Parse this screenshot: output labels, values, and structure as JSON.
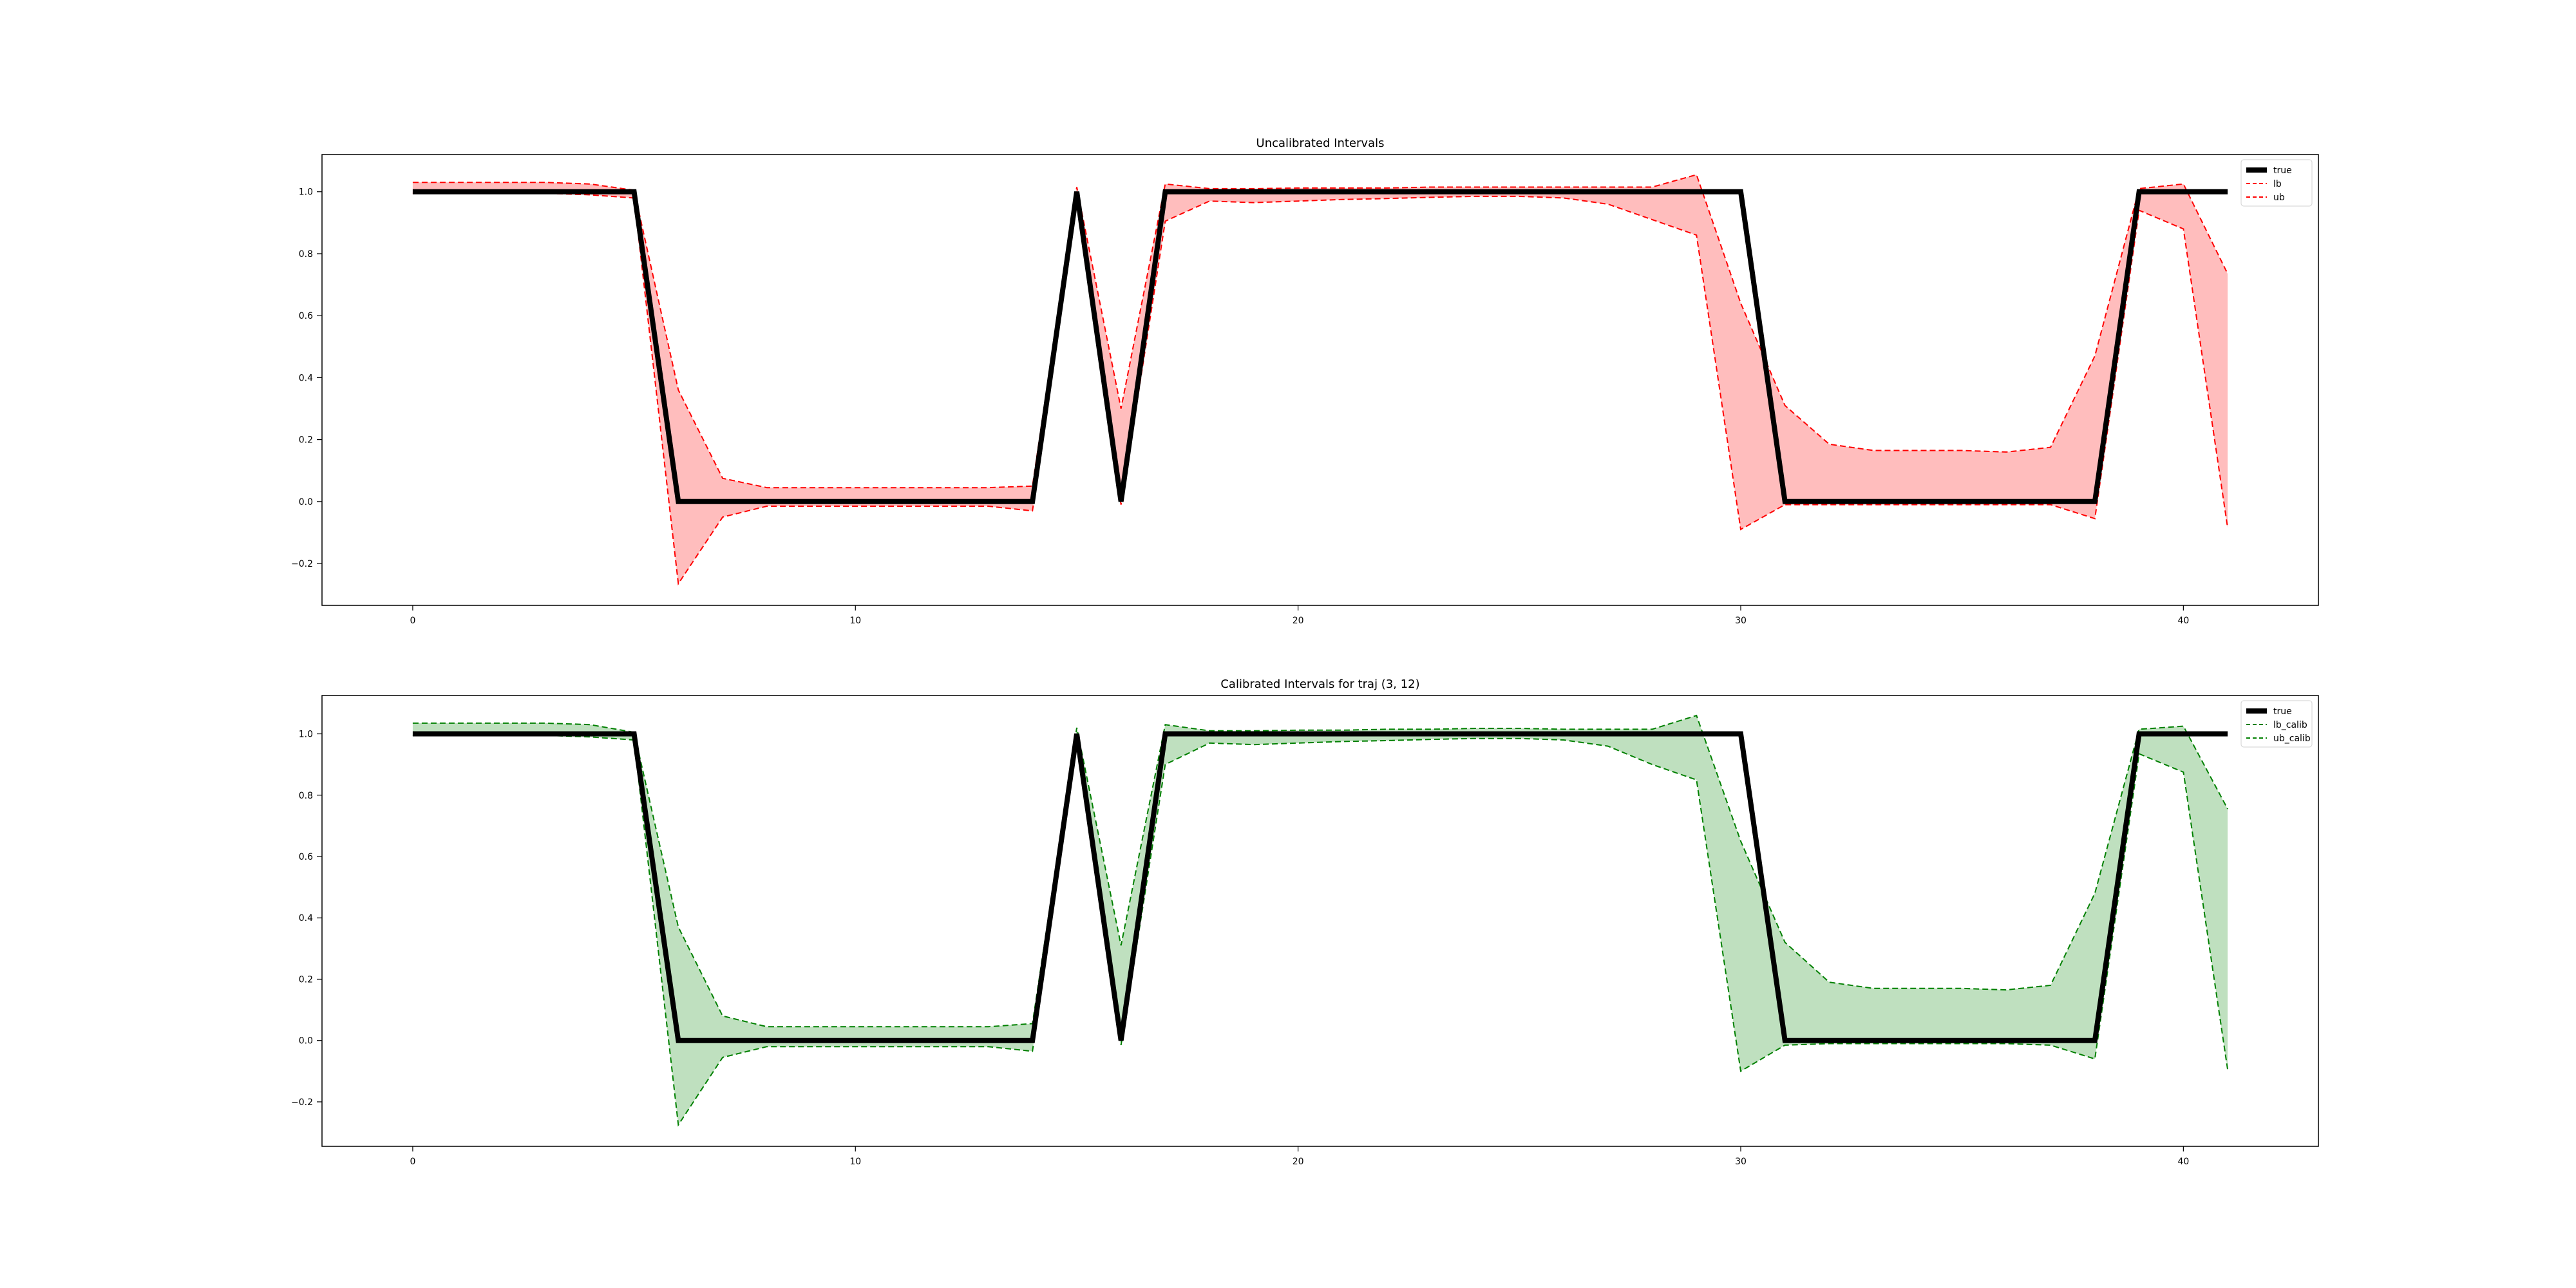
{
  "chart_data": [
    {
      "type": "line",
      "title": "Uncalibrated Intervals",
      "xlabel": "",
      "ylabel": "",
      "xlim": [
        -2.05,
        43.05
      ],
      "ylim": [
        -0.335,
        1.12
      ],
      "xticks": [
        0,
        10,
        20,
        30,
        40
      ],
      "yticks": [
        -0.2,
        0.0,
        0.2,
        0.4,
        0.6,
        0.8,
        1.0
      ],
      "legend_position": "top-right",
      "band_color": "#ffbdbd",
      "series": [
        {
          "name": "true",
          "color": "#000000",
          "style": "solid",
          "x": [
            0,
            1,
            2,
            3,
            4,
            5,
            6,
            7,
            8,
            9,
            10,
            11,
            12,
            13,
            14,
            15,
            16,
            17,
            18,
            19,
            20,
            21,
            22,
            23,
            24,
            25,
            26,
            27,
            28,
            29,
            30,
            31,
            32,
            33,
            34,
            35,
            36,
            37,
            38,
            39,
            40,
            41
          ],
          "y": [
            1,
            1,
            1,
            1,
            1,
            1,
            0,
            0,
            0,
            0,
            0,
            0,
            0,
            0,
            0,
            1,
            0,
            1,
            1,
            1,
            1,
            1,
            1,
            1,
            1,
            1,
            1,
            1,
            1,
            1,
            1,
            0,
            0,
            0,
            0,
            0,
            0,
            0,
            0,
            1,
            1,
            1
          ]
        },
        {
          "name": "lb",
          "color": "#ff0000",
          "style": "dashed",
          "x": [
            0,
            1,
            2,
            3,
            4,
            5,
            6,
            7,
            8,
            9,
            10,
            11,
            12,
            13,
            14,
            15,
            16,
            17,
            18,
            19,
            20,
            21,
            22,
            23,
            24,
            25,
            26,
            27,
            28,
            29,
            30,
            31,
            32,
            33,
            34,
            35,
            36,
            37,
            38,
            39,
            40,
            41
          ],
          "y": [
            0.995,
            0.995,
            0.995,
            0.995,
            0.99,
            0.98,
            -0.265,
            -0.05,
            -0.015,
            -0.015,
            -0.015,
            -0.015,
            -0.015,
            -0.015,
            -0.03,
            0.98,
            -0.01,
            0.905,
            0.97,
            0.965,
            0.97,
            0.975,
            0.978,
            0.982,
            0.985,
            0.985,
            0.98,
            0.96,
            0.91,
            0.86,
            -0.09,
            -0.01,
            -0.01,
            -0.01,
            -0.01,
            -0.01,
            -0.01,
            -0.01,
            -0.055,
            0.94,
            0.88,
            -0.085
          ]
        },
        {
          "name": "ub",
          "color": "#ff0000",
          "style": "dashed",
          "x": [
            0,
            1,
            2,
            3,
            4,
            5,
            6,
            7,
            8,
            9,
            10,
            11,
            12,
            13,
            14,
            15,
            16,
            17,
            18,
            19,
            20,
            21,
            22,
            23,
            24,
            25,
            26,
            27,
            28,
            29,
            30,
            31,
            32,
            33,
            34,
            35,
            36,
            37,
            38,
            39,
            40,
            41
          ],
          "y": [
            1.03,
            1.03,
            1.03,
            1.03,
            1.025,
            1.005,
            0.36,
            0.075,
            0.045,
            0.045,
            0.045,
            0.045,
            0.045,
            0.045,
            0.05,
            1.015,
            0.3,
            1.025,
            1.01,
            1.01,
            1.012,
            1.012,
            1.012,
            1.015,
            1.015,
            1.015,
            1.015,
            1.015,
            1.015,
            1.055,
            0.64,
            0.31,
            0.185,
            0.165,
            0.165,
            0.165,
            0.16,
            0.175,
            0.47,
            1.01,
            1.025,
            0.735
          ]
        }
      ]
    },
    {
      "type": "line",
      "title": "Calibrated Intervals for traj (3, 12)",
      "xlabel": "",
      "ylabel": "",
      "xlim": [
        -2.05,
        43.05
      ],
      "ylim": [
        -0.345,
        1.125
      ],
      "xticks": [
        0,
        10,
        20,
        30,
        40
      ],
      "yticks": [
        -0.2,
        0.0,
        0.2,
        0.4,
        0.6,
        0.8,
        1.0
      ],
      "legend_position": "top-right",
      "band_color": "#bfe0bf",
      "series": [
        {
          "name": "true",
          "color": "#000000",
          "style": "solid",
          "x": [
            0,
            1,
            2,
            3,
            4,
            5,
            6,
            7,
            8,
            9,
            10,
            11,
            12,
            13,
            14,
            15,
            16,
            17,
            18,
            19,
            20,
            21,
            22,
            23,
            24,
            25,
            26,
            27,
            28,
            29,
            30,
            31,
            32,
            33,
            34,
            35,
            36,
            37,
            38,
            39,
            40,
            41
          ],
          "y": [
            1,
            1,
            1,
            1,
            1,
            1,
            0,
            0,
            0,
            0,
            0,
            0,
            0,
            0,
            0,
            1,
            0,
            1,
            1,
            1,
            1,
            1,
            1,
            1,
            1,
            1,
            1,
            1,
            1,
            1,
            1,
            0,
            0,
            0,
            0,
            0,
            0,
            0,
            0,
            1,
            1,
            1
          ]
        },
        {
          "name": "lb_calib",
          "color": "#008000",
          "style": "dashed",
          "x": [
            0,
            1,
            2,
            3,
            4,
            5,
            6,
            7,
            8,
            9,
            10,
            11,
            12,
            13,
            14,
            15,
            16,
            17,
            18,
            19,
            20,
            21,
            22,
            23,
            24,
            25,
            26,
            27,
            28,
            29,
            30,
            31,
            32,
            33,
            34,
            35,
            36,
            37,
            38,
            39,
            40,
            41
          ],
          "y": [
            0.995,
            0.995,
            0.995,
            0.995,
            0.99,
            0.98,
            -0.275,
            -0.055,
            -0.02,
            -0.02,
            -0.02,
            -0.02,
            -0.02,
            -0.02,
            -0.035,
            0.98,
            -0.015,
            0.9,
            0.97,
            0.965,
            0.97,
            0.975,
            0.978,
            0.982,
            0.985,
            0.985,
            0.98,
            0.96,
            0.9,
            0.85,
            -0.1,
            -0.015,
            -0.01,
            -0.01,
            -0.01,
            -0.01,
            -0.01,
            -0.015,
            -0.06,
            0.935,
            0.875,
            -0.095
          ]
        },
        {
          "name": "ub_calib",
          "color": "#008000",
          "style": "dashed",
          "x": [
            0,
            1,
            2,
            3,
            4,
            5,
            6,
            7,
            8,
            9,
            10,
            11,
            12,
            13,
            14,
            15,
            16,
            17,
            18,
            19,
            20,
            21,
            22,
            23,
            24,
            25,
            26,
            27,
            28,
            29,
            30,
            31,
            32,
            33,
            34,
            35,
            36,
            37,
            38,
            39,
            40,
            41
          ],
          "y": [
            1.035,
            1.035,
            1.035,
            1.035,
            1.03,
            1.005,
            0.37,
            0.08,
            0.045,
            0.045,
            0.045,
            0.045,
            0.045,
            0.045,
            0.055,
            1.02,
            0.31,
            1.03,
            1.01,
            1.01,
            1.012,
            1.012,
            1.015,
            1.015,
            1.018,
            1.018,
            1.015,
            1.015,
            1.015,
            1.06,
            0.65,
            0.32,
            0.19,
            0.17,
            0.17,
            0.17,
            0.165,
            0.18,
            0.48,
            1.015,
            1.025,
            0.755
          ]
        }
      ]
    }
  ]
}
